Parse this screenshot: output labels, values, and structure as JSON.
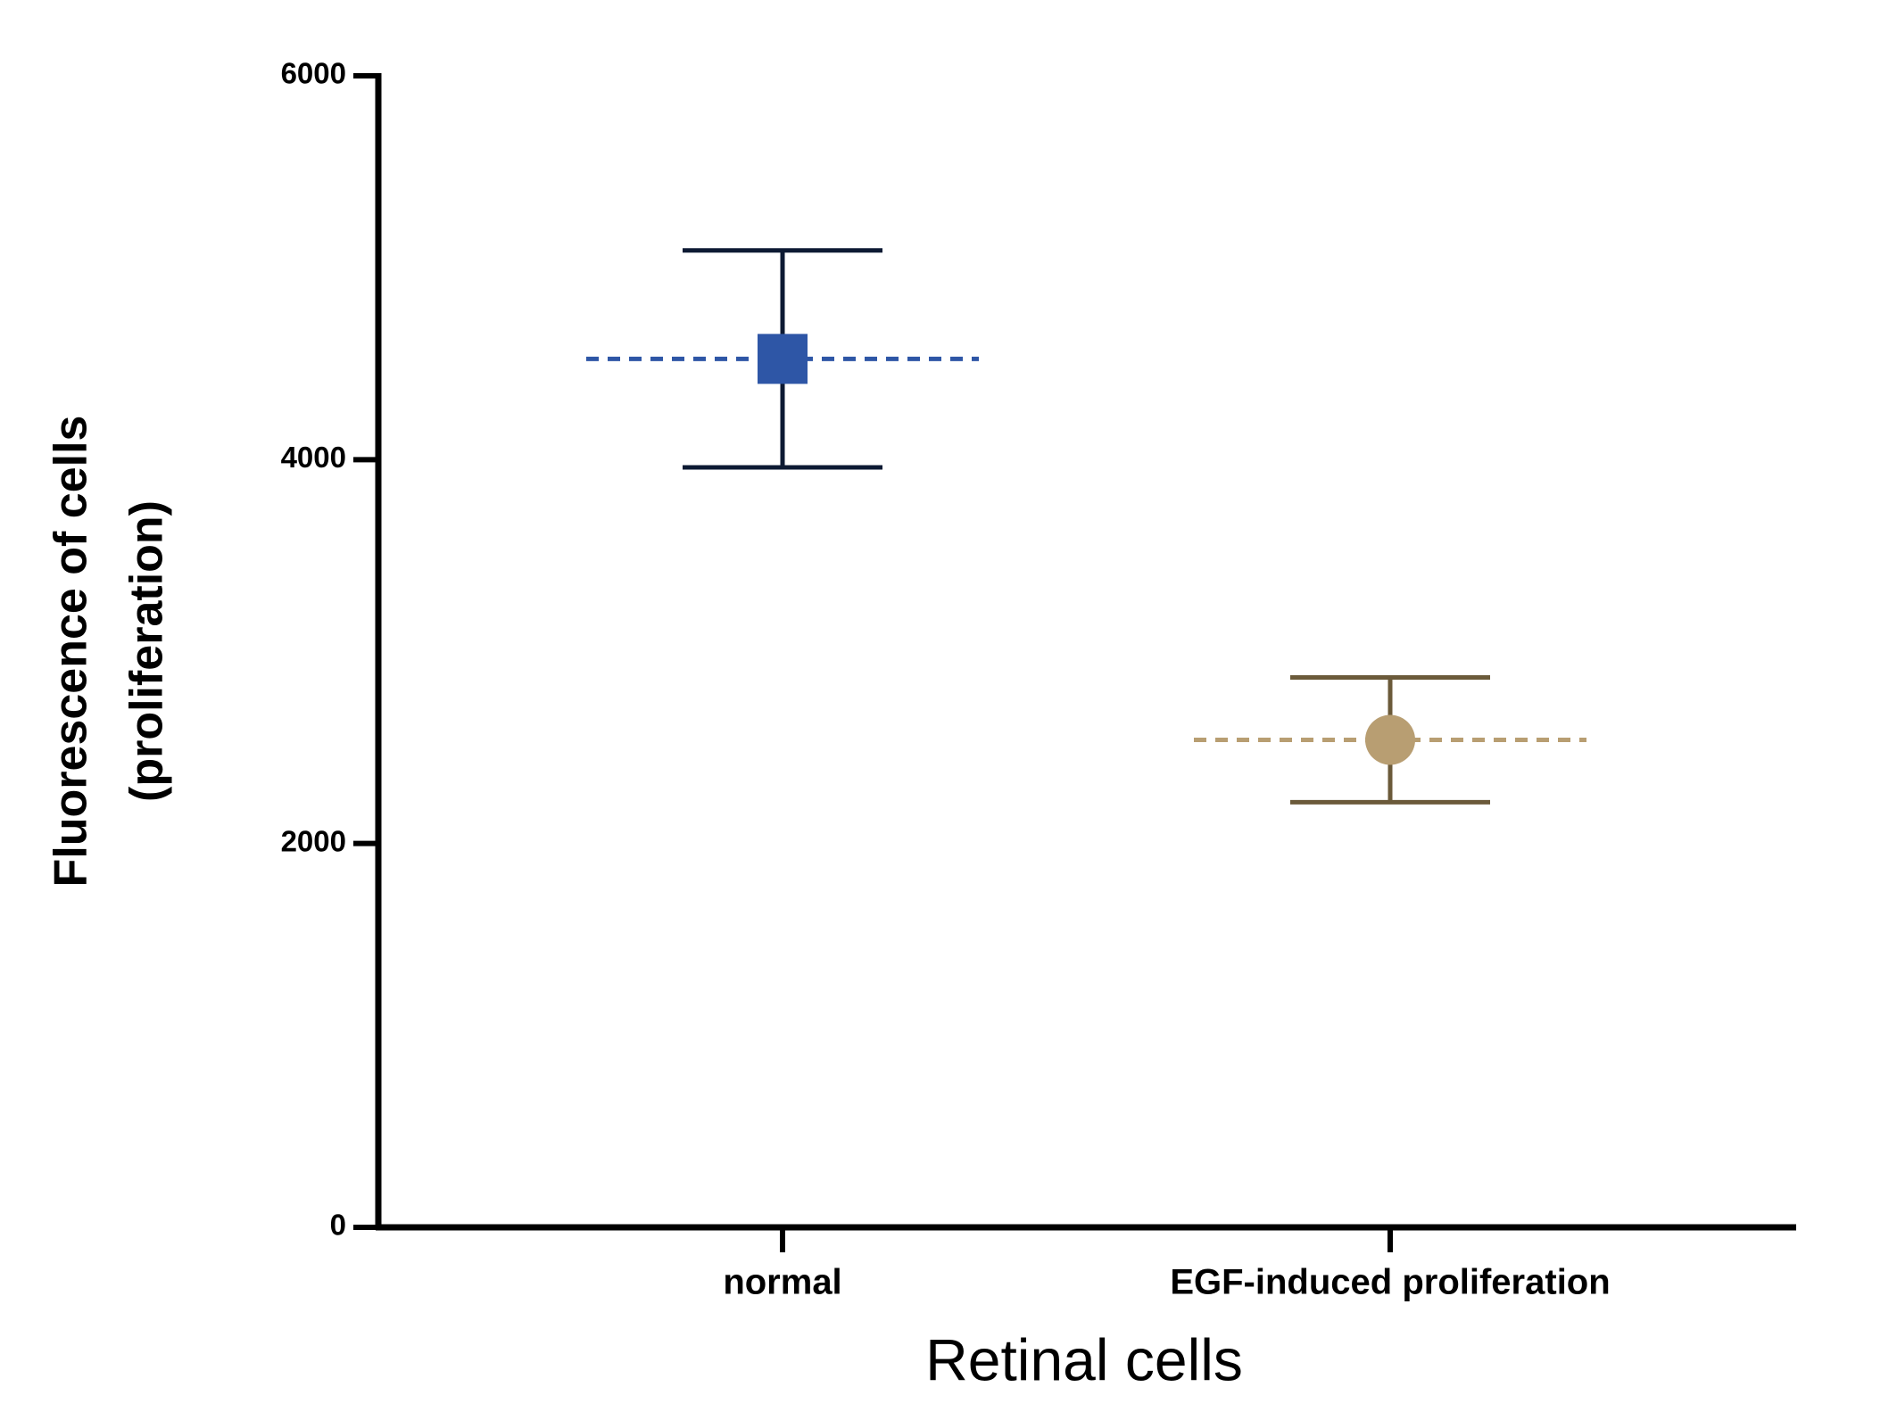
{
  "chart_data": {
    "type": "dot",
    "xlabel": "Retinal cells",
    "ylabel": [
      "Fluorescence of cells",
      "(proliferation)"
    ],
    "categories": [
      "normal",
      "EGF-induced proliferation"
    ],
    "values": [
      4525,
      2540
    ],
    "errors": [
      565,
      325
    ],
    "markers": [
      "square",
      "circle"
    ],
    "colors": [
      "#2e56a6",
      "#b89e72"
    ],
    "error_colors": [
      "#0d1a33",
      "#6b5a3a"
    ],
    "ylim": [
      0,
      6000
    ],
    "yticks": [
      0,
      2000,
      4000,
      6000
    ]
  }
}
